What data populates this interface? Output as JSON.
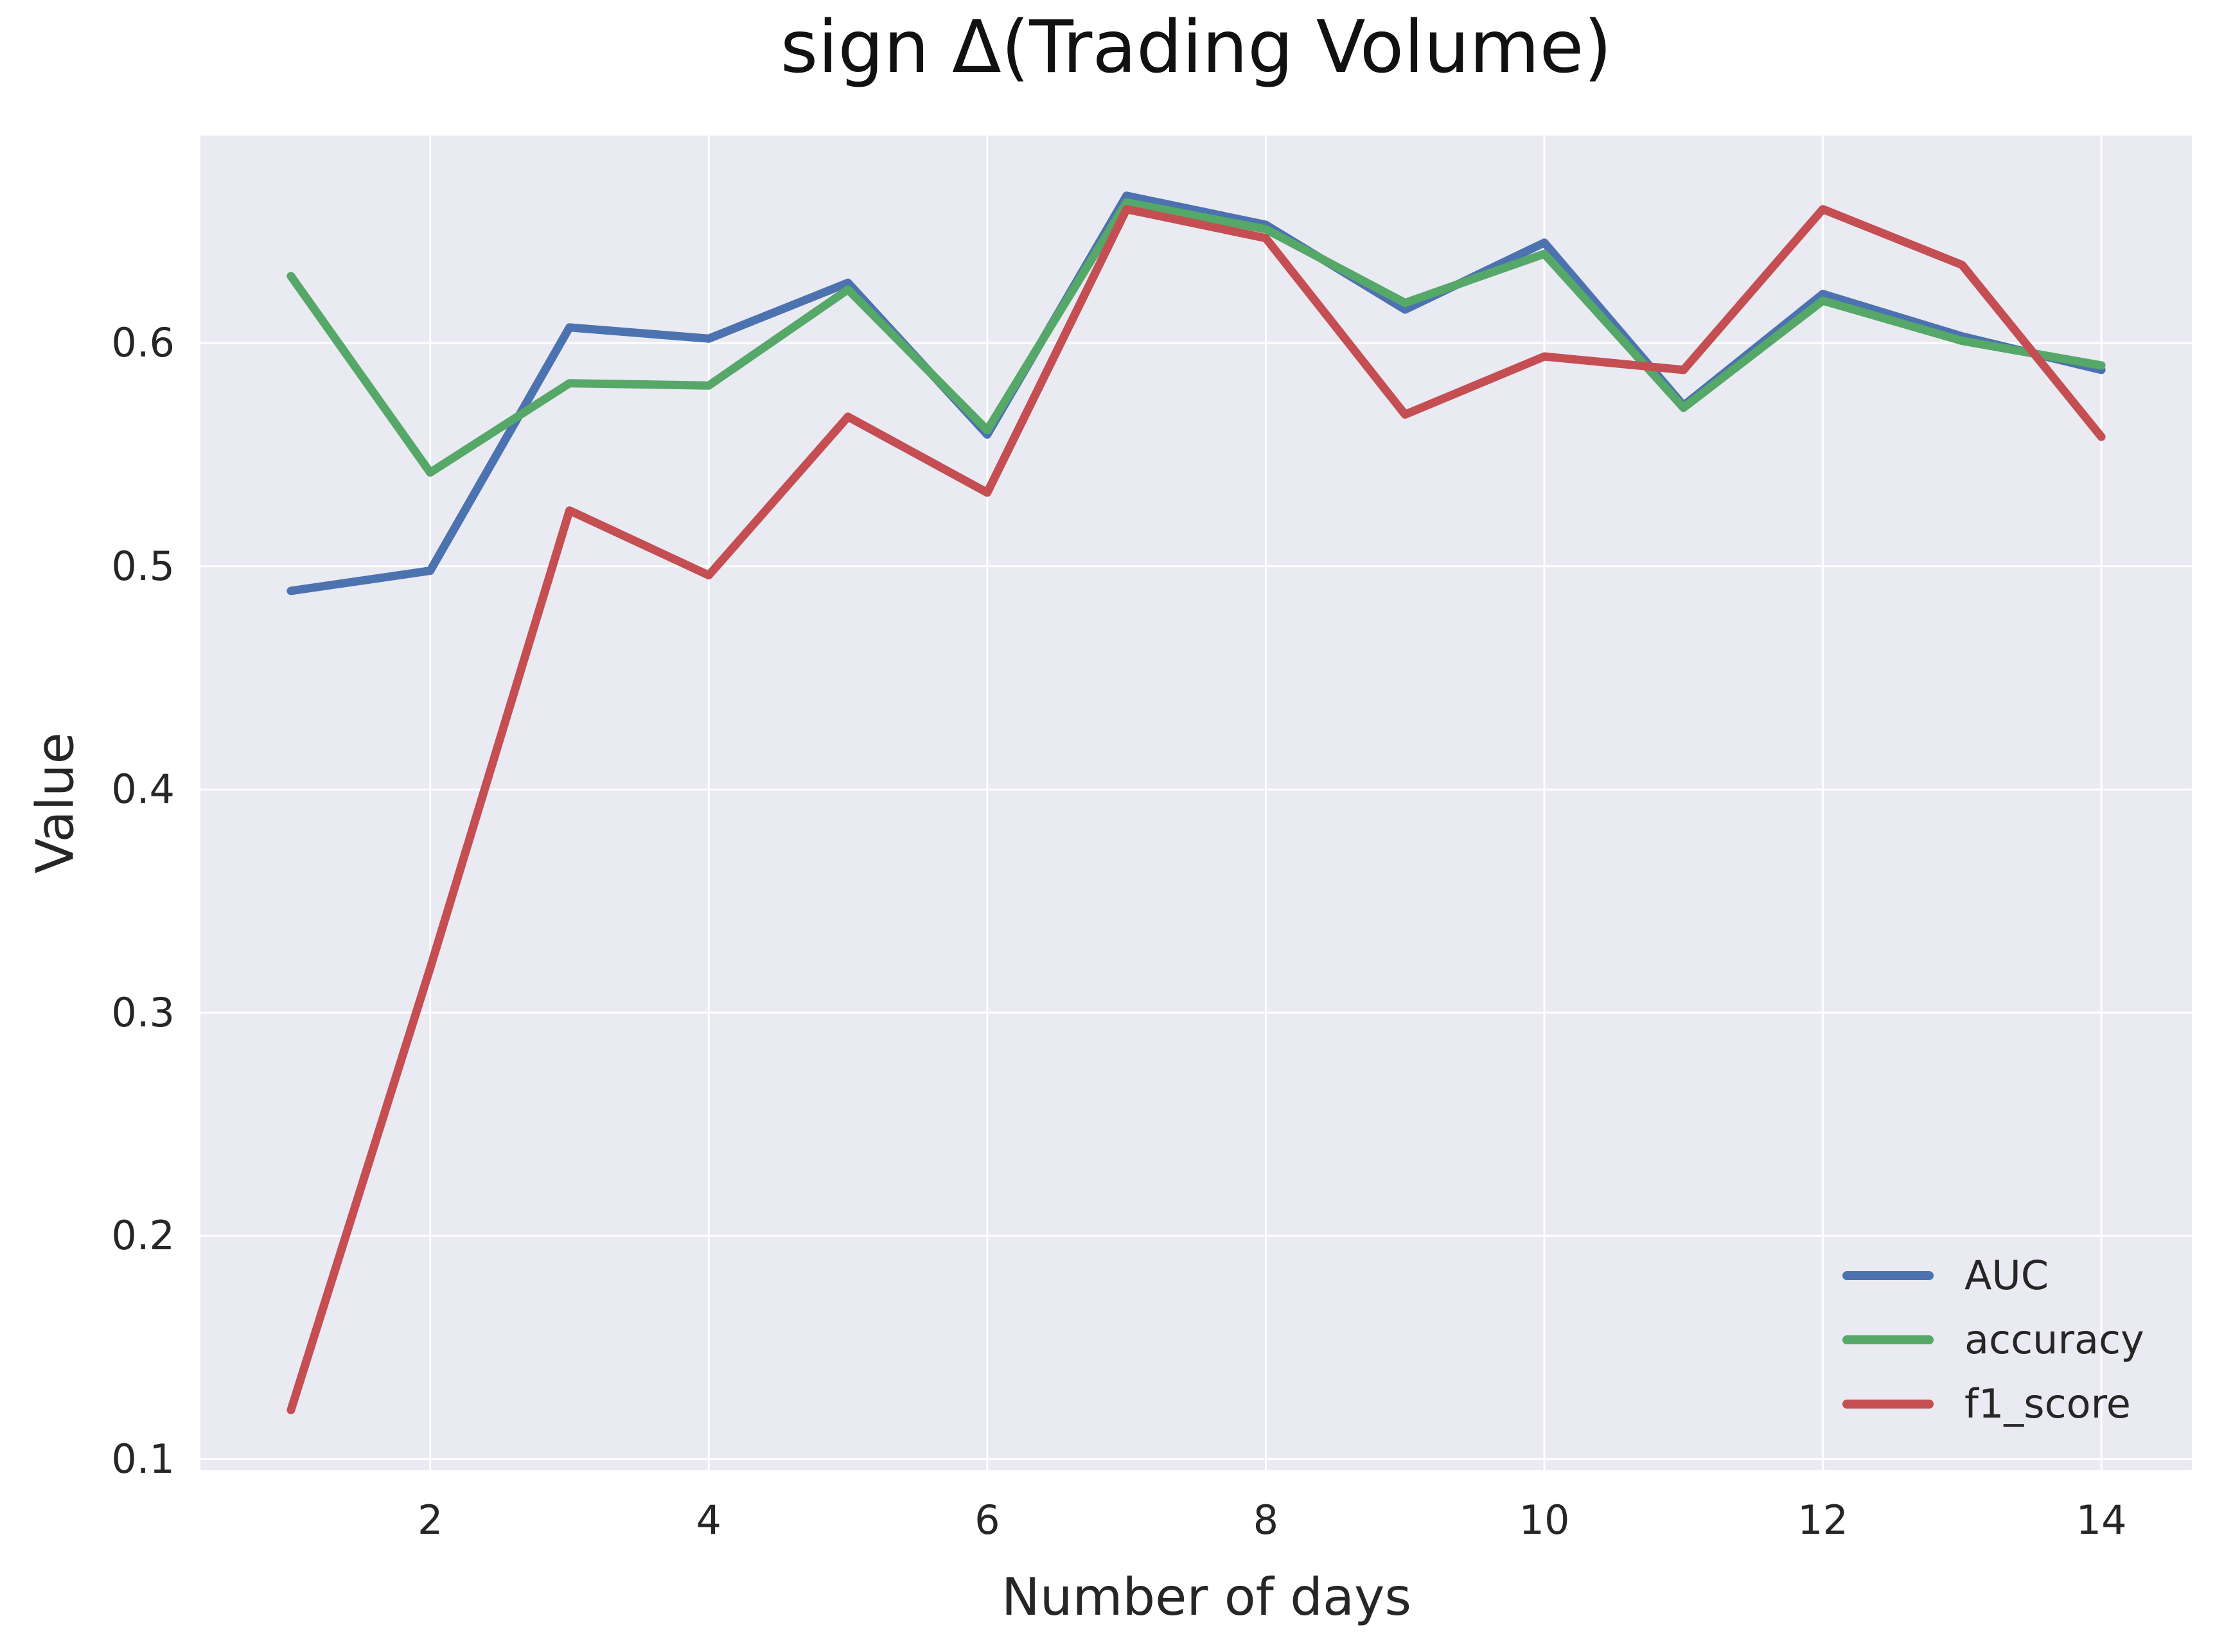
{
  "chart_data": {
    "type": "line",
    "title": "sign Δ(Trading Volume)",
    "xlabel": "Number of days",
    "ylabel": "Value",
    "x": [
      1,
      2,
      3,
      4,
      5,
      6,
      7,
      8,
      9,
      10,
      11,
      12,
      13,
      14
    ],
    "series": [
      {
        "name": "AUC",
        "color": "#4C72B0",
        "values": [
          0.489,
          0.498,
          0.607,
          0.602,
          0.627,
          0.559,
          0.666,
          0.653,
          0.615,
          0.645,
          0.572,
          0.622,
          0.603,
          0.588
        ]
      },
      {
        "name": "accuracy",
        "color": "#55A868",
        "values": [
          0.63,
          0.542,
          0.582,
          0.581,
          0.624,
          0.561,
          0.663,
          0.651,
          0.618,
          0.64,
          0.571,
          0.619,
          0.601,
          0.59
        ]
      },
      {
        "name": "f1_score",
        "color": "#C44E52",
        "values": [
          0.122,
          0.32,
          0.525,
          0.496,
          0.567,
          0.533,
          0.66,
          0.647,
          0.568,
          0.594,
          0.588,
          0.66,
          0.635,
          0.558
        ]
      }
    ],
    "xticks": [
      2,
      4,
      6,
      8,
      10,
      12,
      14
    ],
    "yticks": [
      0.1,
      0.2,
      0.3,
      0.4,
      0.5,
      0.6
    ],
    "xlim": [
      0.35,
      14.65
    ],
    "ylim": [
      0.095,
      0.693
    ],
    "grid": true,
    "legend_position": "lower right",
    "panel_color": "#EAEAF2",
    "grid_color": "#FFFFFF",
    "line_width": 13,
    "grid_line_width": 3
  }
}
